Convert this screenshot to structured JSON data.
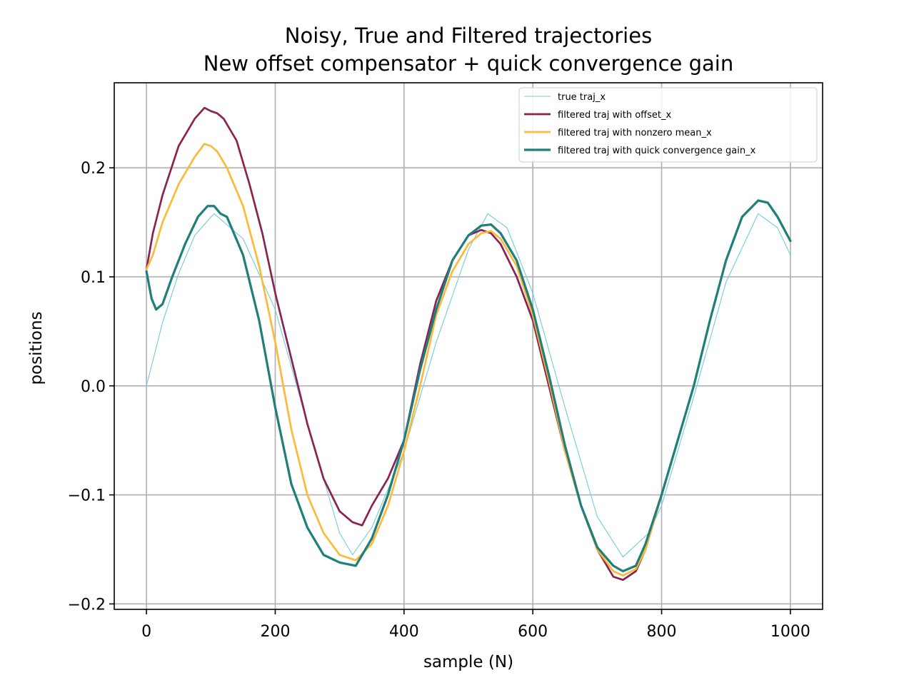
{
  "chart_data": {
    "type": "line",
    "title": [
      "Noisy, True and Filtered trajectories",
      "New offset compensator + quick convergence gain"
    ],
    "xlabel": "sample (N)",
    "ylabel": "positions",
    "xlim": [
      -50,
      1050
    ],
    "ylim": [
      -0.205,
      0.278
    ],
    "xticks": [
      0,
      200,
      400,
      600,
      800,
      1000
    ],
    "xtick_labels": [
      "0",
      "200",
      "400",
      "600",
      "800",
      "1000"
    ],
    "yticks": [
      -0.2,
      -0.1,
      0.0,
      0.1,
      0.2
    ],
    "ytick_labels": [
      "−0.2",
      "−0.1",
      "0.0",
      "0.1",
      "0.2"
    ],
    "grid": true,
    "legend_position": "top-right",
    "series": [
      {
        "name": "true traj_x",
        "color": "#6dccda",
        "line_width": 0.8,
        "x": [
          0,
          25,
          50,
          75,
          105,
          150,
          200,
          250,
          300,
          320,
          350,
          400,
          450,
          500,
          530,
          560,
          600,
          650,
          700,
          740,
          780,
          800,
          850,
          900,
          950,
          980,
          1000
        ],
        "y": [
          0.0,
          0.058,
          0.103,
          0.138,
          0.158,
          0.135,
          0.07,
          -0.035,
          -0.135,
          -0.155,
          -0.13,
          -0.06,
          0.04,
          0.125,
          0.158,
          0.145,
          0.085,
          -0.02,
          -0.12,
          -0.157,
          -0.135,
          -0.11,
          -0.01,
          0.095,
          0.158,
          0.145,
          0.12
        ]
      },
      {
        "name": "filtered traj with offset_x",
        "color": "#8b2252",
        "line_width": 2,
        "x": [
          0,
          10,
          25,
          50,
          75,
          90,
          100,
          110,
          120,
          140,
          160,
          180,
          200,
          225,
          250,
          275,
          300,
          320,
          335,
          350,
          375,
          400,
          425,
          450,
          475,
          500,
          520,
          535,
          550,
          575,
          600,
          625,
          650,
          675,
          700,
          725,
          740,
          760,
          775,
          800,
          825,
          850,
          875,
          900,
          925,
          950,
          965,
          980,
          1000
        ],
        "y": [
          0.107,
          0.14,
          0.175,
          0.22,
          0.245,
          0.255,
          0.252,
          0.25,
          0.245,
          0.225,
          0.185,
          0.14,
          0.085,
          0.025,
          -0.035,
          -0.085,
          -0.115,
          -0.125,
          -0.128,
          -0.11,
          -0.085,
          -0.05,
          0.02,
          0.078,
          0.115,
          0.138,
          0.143,
          0.14,
          0.13,
          0.1,
          0.06,
          0.0,
          -0.06,
          -0.11,
          -0.15,
          -0.175,
          -0.178,
          -0.17,
          -0.15,
          -0.1,
          -0.05,
          0.0,
          0.06,
          0.115,
          0.155,
          0.17,
          0.168,
          0.155,
          0.133
        ]
      },
      {
        "name": "filtered traj with nonzero mean_x",
        "color": "#fdb93a",
        "line_width": 2,
        "x": [
          0,
          10,
          25,
          50,
          75,
          90,
          100,
          110,
          125,
          150,
          175,
          200,
          225,
          250,
          275,
          300,
          325,
          350,
          375,
          400,
          425,
          450,
          475,
          500,
          520,
          535,
          550,
          575,
          600,
          625,
          650,
          675,
          700,
          725,
          740,
          760,
          775,
          800,
          825,
          850,
          875,
          900,
          925,
          950,
          965,
          980,
          1000
        ],
        "y": [
          0.107,
          0.12,
          0.15,
          0.185,
          0.21,
          0.222,
          0.22,
          0.215,
          0.2,
          0.165,
          0.11,
          0.04,
          -0.04,
          -0.1,
          -0.135,
          -0.155,
          -0.16,
          -0.145,
          -0.11,
          -0.06,
          0.0,
          0.065,
          0.105,
          0.13,
          0.14,
          0.142,
          0.135,
          0.11,
          0.065,
          0.005,
          -0.06,
          -0.11,
          -0.15,
          -0.17,
          -0.174,
          -0.168,
          -0.15,
          -0.1,
          -0.05,
          0.0,
          0.06,
          0.115,
          0.155,
          0.17,
          0.168,
          0.155,
          0.133
        ]
      },
      {
        "name": "filtered traj with quick convergence gain_x",
        "color": "#1f7f7a",
        "line_width": 2.4,
        "x": [
          0,
          8,
          15,
          25,
          40,
          60,
          80,
          95,
          105,
          115,
          125,
          150,
          175,
          200,
          225,
          250,
          275,
          300,
          325,
          350,
          375,
          400,
          425,
          450,
          475,
          500,
          520,
          535,
          550,
          575,
          600,
          625,
          650,
          675,
          700,
          725,
          740,
          760,
          775,
          800,
          825,
          850,
          875,
          900,
          925,
          950,
          965,
          980,
          1000
        ],
        "y": [
          0.105,
          0.08,
          0.07,
          0.075,
          0.1,
          0.13,
          0.155,
          0.165,
          0.165,
          0.158,
          0.155,
          0.12,
          0.06,
          -0.02,
          -0.09,
          -0.13,
          -0.155,
          -0.162,
          -0.165,
          -0.14,
          -0.1,
          -0.05,
          0.015,
          0.07,
          0.115,
          0.138,
          0.147,
          0.148,
          0.14,
          0.115,
          0.07,
          0.01,
          -0.055,
          -0.11,
          -0.148,
          -0.165,
          -0.17,
          -0.165,
          -0.145,
          -0.1,
          -0.05,
          0.0,
          0.06,
          0.115,
          0.155,
          0.17,
          0.168,
          0.155,
          0.133
        ]
      }
    ]
  }
}
